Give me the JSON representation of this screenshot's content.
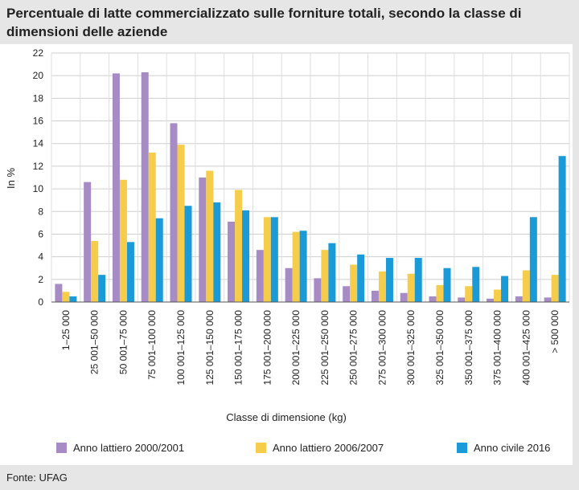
{
  "title": "Percentuale di latte commercializzato sulle forniture totali, secondo la classe di dimensioni delle aziende",
  "source": "Fonte: UFAG",
  "chart_data": {
    "type": "bar",
    "title": "Percentuale di latte commercializzato sulle forniture totali, secondo la classe di dimensioni delle aziende",
    "xlabel": "Classe di dimensione (kg)",
    "ylabel": "In %",
    "ylim": [
      0,
      22
    ],
    "yticks": [
      0,
      2,
      4,
      6,
      8,
      10,
      12,
      14,
      16,
      18,
      20,
      22
    ],
    "grid": "horizontal",
    "legend_position": "bottom",
    "categories": [
      "1–25 000",
      "25 001–50 000",
      "50 001–75 000",
      "75 001–100 000",
      "100 001–125 000",
      "125 001–150 000",
      "150 001–175 000",
      "175 001–200 000",
      "200 001–225 000",
      "225 001–250 000",
      "250 001–275 000",
      "275 001–300 000",
      "300 001–325 000",
      "325 001–350 000",
      "350 001–375 000",
      "375 001–400 000",
      "400 001–425 000",
      "> 500 000"
    ],
    "series": [
      {
        "name": "Anno lattiero 2000/2001",
        "color": "#a68bc4",
        "values": [
          1.6,
          10.6,
          20.2,
          20.3,
          15.8,
          11.0,
          7.1,
          4.6,
          3.0,
          2.1,
          1.4,
          1.0,
          0.8,
          0.5,
          0.4,
          0.3,
          0.5,
          0.4
        ]
      },
      {
        "name": "Anno lattiero 2006/2007",
        "color": "#f5cd4b",
        "values": [
          0.9,
          5.4,
          10.8,
          13.2,
          13.9,
          11.6,
          9.9,
          7.5,
          6.2,
          4.6,
          3.3,
          2.7,
          2.5,
          1.5,
          1.4,
          1.1,
          2.8,
          2.4
        ]
      },
      {
        "name": "Anno civile 2016",
        "color": "#1a9ad6",
        "values": [
          0.5,
          2.4,
          5.3,
          7.4,
          8.5,
          8.8,
          8.1,
          7.5,
          6.3,
          5.2,
          4.2,
          3.9,
          3.9,
          3.0,
          3.1,
          2.3,
          7.5,
          12.9
        ]
      }
    ]
  }
}
